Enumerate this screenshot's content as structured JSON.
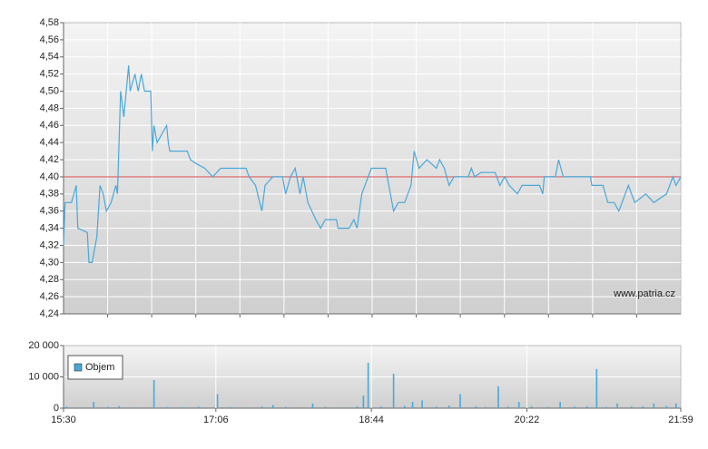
{
  "chart_data": [
    {
      "type": "line",
      "color": "#4aa8d8",
      "grid": true,
      "xlim": [
        "15:30",
        "21:59"
      ],
      "ylim": [
        4.24,
        4.58
      ],
      "yticks": [
        {
          "value": 4.24,
          "label": "4,24"
        },
        {
          "value": 4.26,
          "label": "4,26"
        },
        {
          "value": 4.28,
          "label": "4,28"
        },
        {
          "value": 4.3,
          "label": "4,30"
        },
        {
          "value": 4.32,
          "label": "4,32"
        },
        {
          "value": 4.34,
          "label": "4,34"
        },
        {
          "value": 4.36,
          "label": "4,36"
        },
        {
          "value": 4.38,
          "label": "4,38"
        },
        {
          "value": 4.4,
          "label": "4,40"
        },
        {
          "value": 4.42,
          "label": "4,42"
        },
        {
          "value": 4.44,
          "label": "4,44"
        },
        {
          "value": 4.46,
          "label": "4,46"
        },
        {
          "value": 4.48,
          "label": "4,48"
        },
        {
          "value": 4.5,
          "label": "4,50"
        },
        {
          "value": 4.52,
          "label": "4,52"
        },
        {
          "value": 4.54,
          "label": "4,54"
        },
        {
          "value": 4.56,
          "label": "4,56"
        },
        {
          "value": 4.58,
          "label": "4,58"
        }
      ],
      "reference_line": {
        "value": 4.4,
        "color": "#e06060"
      },
      "watermark": "www.patria.cz",
      "x": [
        "15:30",
        "15:31",
        "15:35",
        "15:38",
        "15:39",
        "15:45",
        "15:46",
        "15:48",
        "15:49",
        "15:51",
        "15:53",
        "15:55",
        "15:57",
        "16:00",
        "16:03",
        "16:04",
        "16:06",
        "16:08",
        "16:11",
        "16:12",
        "16:15",
        "16:17",
        "16:19",
        "16:21",
        "16:25",
        "16:26",
        "16:27",
        "16:29",
        "16:32",
        "16:35",
        "16:36",
        "16:37",
        "16:48",
        "16:50",
        "16:54",
        "16:59",
        "17:04",
        "17:09",
        "17:25",
        "17:27",
        "17:31",
        "17:35",
        "17:37",
        "17:42",
        "17:48",
        "17:50",
        "17:53",
        "17:56",
        "17:59",
        "18:01",
        "18:04",
        "18:09",
        "18:12",
        "18:15",
        "18:22",
        "18:23",
        "18:30",
        "18:33",
        "18:35",
        "18:38",
        "18:40",
        "18:42",
        "18:44",
        "18:53",
        "18:56",
        "18:58",
        "19:01",
        "19:05",
        "19:09",
        "19:11",
        "19:14",
        "19:19",
        "19:25",
        "19:27",
        "19:30",
        "19:33",
        "19:36",
        "19:45",
        "19:47",
        "19:49",
        "19:53",
        "20:02",
        "20:05",
        "20:08",
        "20:11",
        "20:16",
        "20:19",
        "20:30",
        "20:32",
        "20:33",
        "20:40",
        "20:42",
        "20:45",
        "21:02",
        "21:03",
        "21:10",
        "21:13",
        "21:17",
        "21:20",
        "21:22",
        "21:26",
        "21:30",
        "21:37",
        "21:42",
        "21:50",
        "21:54",
        "21:56",
        "21:59"
      ],
      "values": [
        4.32,
        4.37,
        4.37,
        4.39,
        4.34,
        4.335,
        4.3,
        4.3,
        4.31,
        4.33,
        4.39,
        4.38,
        4.36,
        4.37,
        4.39,
        4.38,
        4.5,
        4.47,
        4.53,
        4.5,
        4.52,
        4.5,
        4.52,
        4.5,
        4.5,
        4.43,
        4.46,
        4.44,
        4.45,
        4.46,
        4.44,
        4.43,
        4.43,
        4.42,
        4.415,
        4.41,
        4.4,
        4.41,
        4.41,
        4.4,
        4.39,
        4.36,
        4.39,
        4.4,
        4.4,
        4.38,
        4.4,
        4.41,
        4.38,
        4.4,
        4.37,
        4.35,
        4.34,
        4.35,
        4.35,
        4.34,
        4.34,
        4.35,
        4.34,
        4.38,
        4.39,
        4.4,
        4.41,
        4.41,
        4.38,
        4.36,
        4.37,
        4.37,
        4.39,
        4.43,
        4.41,
        4.42,
        4.41,
        4.42,
        4.41,
        4.39,
        4.4,
        4.4,
        4.41,
        4.4,
        4.405,
        4.405,
        4.39,
        4.4,
        4.39,
        4.38,
        4.39,
        4.39,
        4.38,
        4.4,
        4.4,
        4.42,
        4.4,
        4.4,
        4.39,
        4.39,
        4.37,
        4.37,
        4.36,
        4.37,
        4.39,
        4.37,
        4.38,
        4.37,
        4.38,
        4.4,
        4.39,
        4.4
      ]
    },
    {
      "type": "bar",
      "grid": true,
      "xlim": [
        "15:30",
        "21:59"
      ],
      "xticks": [
        "15:30",
        "17:06",
        "18:44",
        "20:22",
        "21:59"
      ],
      "ylim": [
        0,
        20000
      ],
      "yticks": [
        0,
        {
          "value": 10000,
          "label": "10 000"
        },
        {
          "value": 20000,
          "label": "20 000"
        }
      ],
      "series": [
        {
          "name": "Objem",
          "color": "#4aa8d8",
          "x": [
            "15:32",
            "15:40",
            "15:49",
            "15:58",
            "16:05",
            "16:15",
            "16:27",
            "16:35",
            "16:45",
            "16:55",
            "17:07",
            "17:15",
            "17:25",
            "17:35",
            "17:42",
            "17:50",
            "18:00",
            "18:07",
            "18:15",
            "18:25",
            "18:35",
            "18:39",
            "18:42",
            "18:50",
            "18:58",
            "19:05",
            "19:10",
            "19:16",
            "19:25",
            "19:33",
            "19:40",
            "19:50",
            "19:56",
            "20:04",
            "20:10",
            "20:17",
            "20:25",
            "20:35",
            "20:43",
            "20:52",
            "21:00",
            "21:06",
            "21:12",
            "21:19",
            "21:28",
            "21:35",
            "21:42",
            "21:50",
            "21:56"
          ],
          "values": [
            500,
            300,
            2000,
            400,
            600,
            300,
            9000,
            400,
            300,
            500,
            4500,
            400,
            300,
            500,
            1000,
            400,
            300,
            1500,
            400,
            300,
            600,
            4000,
            14500,
            500,
            11000,
            700,
            2000,
            2500,
            500,
            800,
            4500,
            600,
            400,
            7000,
            500,
            2000,
            600,
            400,
            2000,
            500,
            600,
            12500,
            400,
            1500,
            500,
            600,
            1500,
            700,
            1500
          ]
        }
      ]
    }
  ]
}
